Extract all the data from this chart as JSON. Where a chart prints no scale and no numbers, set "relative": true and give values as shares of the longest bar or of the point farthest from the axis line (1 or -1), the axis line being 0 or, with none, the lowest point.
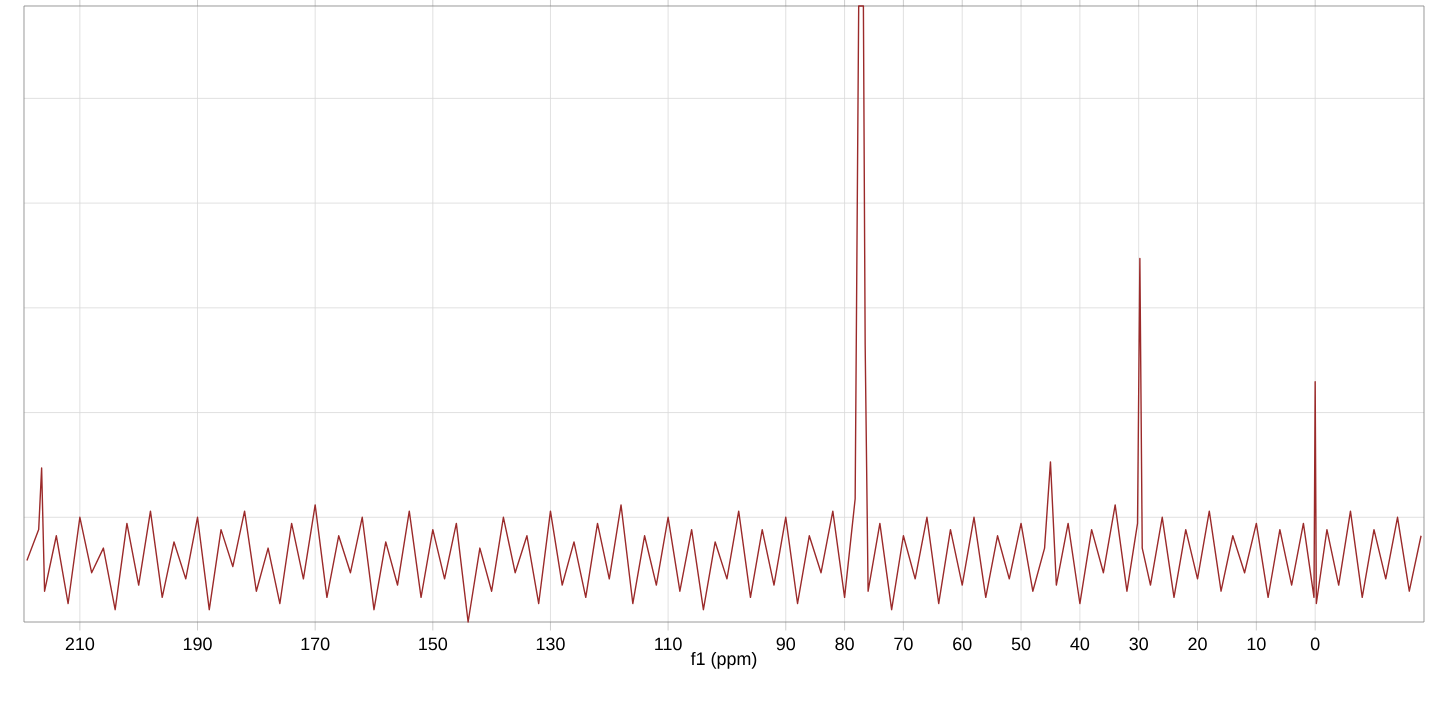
{
  "chart_data": {
    "type": "line",
    "xlabel": "f1 (ppm)",
    "relative": true,
    "grid": true,
    "xlim": [
      219.5,
      -18.5
    ],
    "xticks": [
      210,
      190,
      170,
      150,
      130,
      110,
      90,
      80,
      70,
      60,
      50,
      40,
      30,
      20,
      10,
      0
    ],
    "series": [
      {
        "color": "#9b2a2a",
        "x": [
          219,
          217,
          216.5,
          216,
          214,
          212,
          210,
          208,
          206,
          204,
          202,
          200,
          198,
          196,
          194,
          192,
          190,
          188,
          186,
          184,
          182,
          180,
          178,
          176,
          174,
          172,
          170,
          168,
          166,
          164,
          162,
          160,
          158,
          156,
          154,
          152,
          150,
          148,
          146,
          144,
          142,
          140,
          138,
          136,
          134,
          132,
          130,
          128,
          126,
          124,
          122,
          120,
          118,
          116,
          114,
          112,
          110,
          108,
          106,
          104,
          102,
          100,
          98,
          96,
          94,
          92,
          90,
          88,
          86,
          84,
          82,
          80,
          78.2,
          77.6,
          77.2,
          76.8,
          76.5,
          76,
          74,
          72,
          70,
          68,
          66,
          64,
          62,
          60,
          58,
          56,
          54,
          52,
          50,
          48,
          46,
          45,
          44,
          42,
          40,
          38,
          36,
          34,
          32,
          30.2,
          29.8,
          29.4,
          28,
          26,
          24,
          22,
          20,
          18,
          16,
          14,
          12,
          10,
          8,
          6,
          4,
          2,
          0.2,
          0,
          -0.2,
          -2,
          -4,
          -6,
          -8,
          -10,
          -12,
          -14,
          -16,
          -18
        ],
        "values": [
          0.1,
          0.15,
          0.25,
          0.05,
          0.14,
          0.03,
          0.17,
          0.08,
          0.12,
          0.02,
          0.16,
          0.06,
          0.18,
          0.04,
          0.13,
          0.07,
          0.17,
          0.02,
          0.15,
          0.09,
          0.18,
          0.05,
          0.12,
          0.03,
          0.16,
          0.07,
          0.19,
          0.04,
          0.14,
          0.08,
          0.17,
          0.02,
          0.13,
          0.06,
          0.18,
          0.04,
          0.15,
          0.07,
          0.16,
          0.0,
          0.12,
          0.05,
          0.17,
          0.08,
          0.14,
          0.03,
          0.18,
          0.06,
          0.13,
          0.04,
          0.16,
          0.07,
          0.19,
          0.03,
          0.14,
          0.06,
          0.17,
          0.05,
          0.15,
          0.02,
          0.13,
          0.07,
          0.18,
          0.04,
          0.15,
          0.06,
          0.17,
          0.03,
          0.14,
          0.08,
          0.18,
          0.04,
          0.2,
          1,
          1,
          1,
          0.45,
          0.05,
          0.16,
          0.02,
          0.14,
          0.07,
          0.17,
          0.03,
          0.15,
          0.06,
          0.17,
          0.04,
          0.14,
          0.07,
          0.16,
          0.05,
          0.12,
          0.26,
          0.06,
          0.16,
          0.03,
          0.15,
          0.08,
          0.19,
          0.05,
          0.16,
          0.59,
          0.12,
          0.06,
          0.17,
          0.04,
          0.15,
          0.07,
          0.18,
          0.05,
          0.14,
          0.08,
          0.16,
          0.04,
          0.15,
          0.06,
          0.16,
          0.04,
          0.39,
          0.03,
          0.15,
          0.06,
          0.18,
          0.04,
          0.15,
          0.07,
          0.17,
          0.05,
          0.14
        ]
      }
    ]
  }
}
